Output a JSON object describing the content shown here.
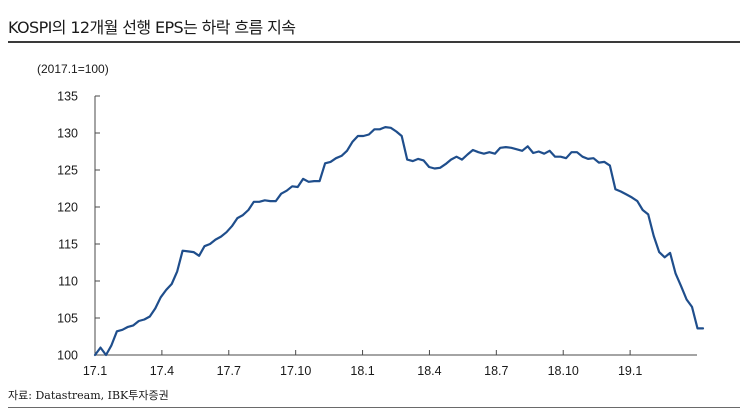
{
  "header": {
    "title": "KOSPI의 12개월 선행 EPS는 하락 흐름 지속",
    "unit_note": "(2017.1=100)"
  },
  "footer": {
    "source": "자료: Datastream, IBK투자증권"
  },
  "colors": {
    "line": "#1f4e8c",
    "axis": "#4a4a4a"
  },
  "chart_data": {
    "type": "line",
    "title": "KOSPI의 12개월 선행 EPS는 하락 흐름 지속",
    "xlabel": "",
    "ylabel": "",
    "ylim": [
      100,
      135
    ],
    "yticks": [
      100,
      105,
      110,
      115,
      120,
      125,
      130,
      135
    ],
    "xticks": [
      "17.1",
      "17.4",
      "17.7",
      "17.10",
      "18.1",
      "18.4",
      "18.7",
      "18.10",
      "19.1"
    ],
    "grid": false,
    "legend": "none",
    "series": [
      {
        "values": [
          100.0,
          101.0,
          100.0,
          101.3,
          103.2,
          103.4,
          103.8,
          104.0,
          104.6,
          104.8,
          105.2,
          106.3,
          107.8,
          108.8,
          109.6,
          111.3,
          114.1,
          114.0,
          113.9,
          113.4,
          114.7,
          115.0,
          115.6,
          116.0,
          116.6,
          117.4,
          118.5,
          118.9,
          119.6,
          120.7,
          120.7,
          120.9,
          120.8,
          120.8,
          121.8,
          122.2,
          122.8,
          122.7,
          123.8,
          123.4,
          123.5,
          123.5,
          125.9,
          126.1,
          126.6,
          126.9,
          127.6,
          128.8,
          129.6,
          129.6,
          129.8,
          130.5,
          130.5,
          130.8,
          130.7,
          130.2,
          129.6,
          126.4,
          126.2,
          126.5,
          126.3,
          125.4,
          125.2,
          125.3,
          125.8,
          126.4,
          126.8,
          126.4,
          127.1,
          127.7,
          127.4,
          127.2,
          127.4,
          127.2,
          128.0,
          128.1,
          128.0,
          127.8,
          127.6,
          128.2,
          127.3,
          127.5,
          127.2,
          127.6,
          126.8,
          126.8,
          126.6,
          127.4,
          127.4,
          126.8,
          126.5,
          126.6,
          126.0,
          126.1,
          125.6,
          122.4,
          122.1,
          121.7,
          121.3,
          120.8,
          119.6,
          119.0,
          116.1,
          113.9,
          113.2,
          113.8,
          111.0,
          109.3,
          107.5,
          106.5,
          103.6,
          103.6
        ]
      }
    ]
  }
}
